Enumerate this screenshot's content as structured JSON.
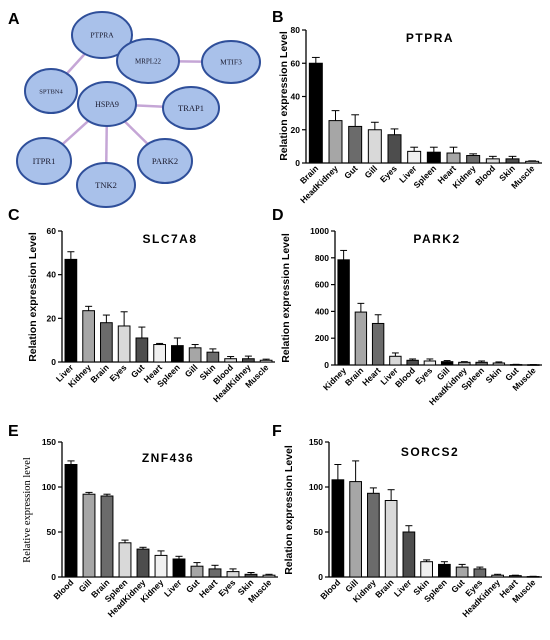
{
  "panels": [
    "A",
    "B",
    "C",
    "D",
    "E",
    "F"
  ],
  "network": {
    "node_fill": "#a9c1ea",
    "node_stroke": "#2f4f9a",
    "edge_color": "#c5a6d6",
    "nodes": [
      {
        "id": "PTPRA",
        "label": "PTPRA"
      },
      {
        "id": "MRPL22",
        "label": "MRPL22"
      },
      {
        "id": "MTIF3",
        "label": "MTIF3"
      },
      {
        "id": "SPTBN4",
        "label": "SPTBN4"
      },
      {
        "id": "HSPA9",
        "label": "HSPA9"
      },
      {
        "id": "TRAP1",
        "label": "TRAP1"
      },
      {
        "id": "ITPR1",
        "label": "ITPR1"
      },
      {
        "id": "PARK2",
        "label": "PARK2"
      },
      {
        "id": "TNK2",
        "label": "TNK2"
      }
    ],
    "edges": [
      [
        "PTPRA",
        "SPTBN4"
      ],
      [
        "MRPL22",
        "MTIF3"
      ],
      [
        "HSPA9",
        "TRAP1"
      ],
      [
        "HSPA9",
        "ITPR1"
      ],
      [
        "HSPA9",
        "TNK2"
      ],
      [
        "HSPA9",
        "PARK2"
      ]
    ]
  },
  "bar_colors": [
    "#000000",
    "#a6a6a6",
    "#6b6b6b",
    "#d9d9d9",
    "#4d4d4d",
    "#f0f0f0"
  ],
  "chart_data": [
    {
      "panel": "B",
      "type": "bar",
      "title": "PTPRA",
      "ylabel": "Relation expression Level",
      "ylim": [
        0,
        80
      ],
      "yticks": [
        0,
        20,
        40,
        60,
        80
      ],
      "categories": [
        "Brain",
        "HeadKidney",
        "Gut",
        "Gill",
        "Eyes",
        "Liver",
        "Spleen",
        "Heart",
        "Kidney",
        "Blood",
        "Skin",
        "Muscle"
      ],
      "values": [
        60,
        25.5,
        22,
        20,
        17,
        7,
        6.5,
        6,
        4.5,
        2.5,
        2.5,
        1
      ],
      "errors": [
        3.5,
        6,
        7,
        4.5,
        3.5,
        2.5,
        3,
        3.5,
        1,
        1.5,
        1.5,
        0.3
      ]
    },
    {
      "panel": "C",
      "type": "bar",
      "title": "SLC7A8",
      "ylabel": "Relation expression Level",
      "ylim": [
        0,
        60
      ],
      "yticks": [
        0,
        20,
        40,
        60
      ],
      "categories": [
        "Liver",
        "Kidney",
        "Brain",
        "Eyes",
        "Gut",
        "Heart",
        "Spleen",
        "Gill",
        "Skin",
        "Blood",
        "HeadKidney",
        "Muscle"
      ],
      "values": [
        47,
        23.5,
        18,
        16.5,
        11,
        8,
        7.5,
        6.5,
        4.5,
        1.5,
        1.5,
        0.8
      ],
      "errors": [
        3.5,
        2,
        3.5,
        6.5,
        5,
        0.5,
        3.5,
        1.5,
        1.5,
        1,
        1.2,
        0.5
      ]
    },
    {
      "panel": "D",
      "type": "bar",
      "title": "PARK2",
      "ylabel": "Relation expression Level",
      "ylim": [
        0,
        1000
      ],
      "yticks": [
        0,
        200,
        400,
        600,
        800,
        1000
      ],
      "categories": [
        "Kidney",
        "Brain",
        "Heart",
        "Liver",
        "Blood",
        "Eyes",
        "Gill",
        "HeadKidney",
        "Spleen",
        "Skin",
        "Gut",
        "Muscle"
      ],
      "values": [
        785,
        395,
        310,
        65,
        35,
        30,
        25,
        20,
        20,
        15,
        3,
        2
      ],
      "errors": [
        70,
        65,
        65,
        25,
        10,
        15,
        8,
        5,
        10,
        8,
        2,
        1
      ]
    },
    {
      "panel": "E",
      "type": "bar",
      "title": "ZNF436",
      "ylabel": "Relative expression level",
      "ylim": [
        0,
        150
      ],
      "yticks": [
        0,
        50,
        100,
        150
      ],
      "categories": [
        "Blood",
        "Gill",
        "Brain",
        "Spleen",
        "HeadKidney",
        "Kidney",
        "Liver",
        "Gut",
        "Heart",
        "Eyes",
        "Skin",
        "Muscle"
      ],
      "values": [
        125,
        92,
        90,
        38,
        31,
        24,
        20,
        12,
        9,
        6,
        3,
        2
      ],
      "errors": [
        4,
        2,
        2,
        3,
        2,
        5,
        3,
        4,
        4,
        3,
        2,
        1
      ]
    },
    {
      "panel": "F",
      "type": "bar",
      "title": "SORCS2",
      "ylabel": "Relation expression Level",
      "ylim": [
        0,
        150
      ],
      "yticks": [
        0,
        50,
        100,
        150
      ],
      "categories": [
        "Blood",
        "Gill",
        "Kidney",
        "Brain",
        "Liver",
        "Skin",
        "Spleen",
        "Gut",
        "Eyes",
        "HeadKidney",
        "Heart",
        "Muscle"
      ],
      "values": [
        108,
        106,
        93,
        85,
        50,
        17,
        14,
        11,
        9,
        2,
        1.5,
        0.5
      ],
      "errors": [
        17,
        23,
        6,
        12,
        7,
        2,
        3,
        3,
        2,
        1,
        0.5,
        0.3
      ]
    }
  ]
}
